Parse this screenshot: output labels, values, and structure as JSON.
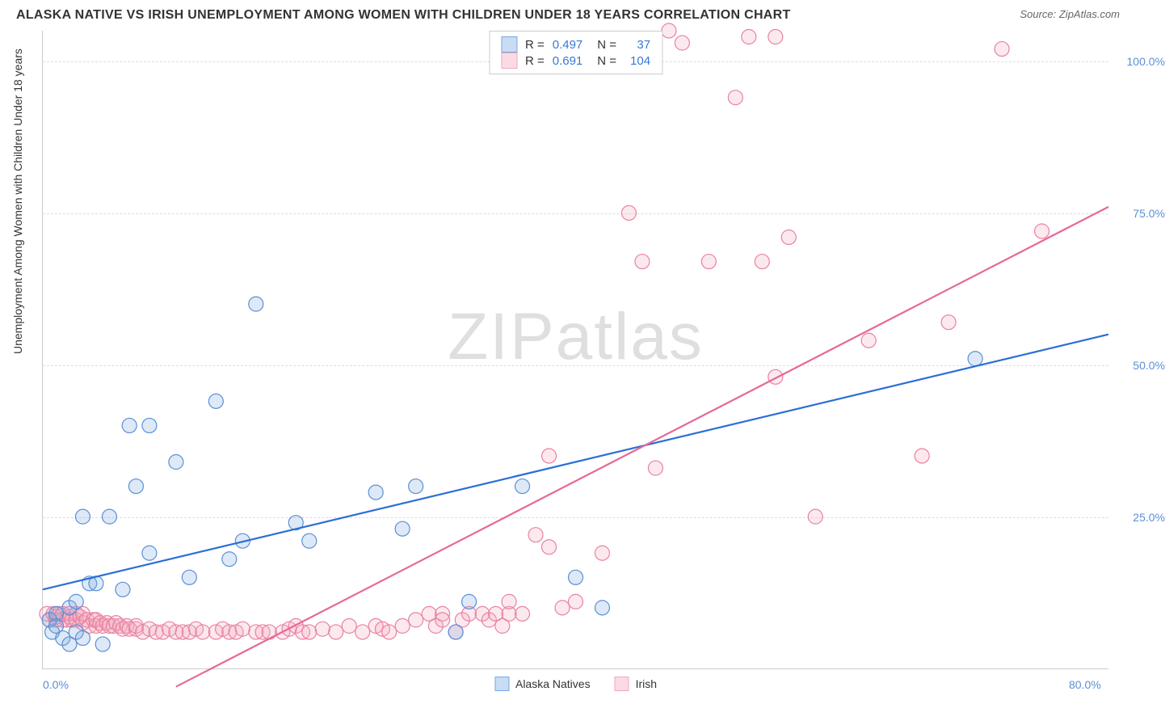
{
  "title": "ALASKA NATIVE VS IRISH UNEMPLOYMENT AMONG WOMEN WITH CHILDREN UNDER 18 YEARS CORRELATION CHART",
  "source": "Source: ZipAtlas.com",
  "y_axis_label": "Unemployment Among Women with Children Under 18 years",
  "watermark": "ZIPatlas",
  "chart": {
    "type": "scatter",
    "x_domain": [
      0,
      80
    ],
    "y_domain": [
      0,
      105
    ],
    "x_ticks": [
      {
        "v": 0,
        "label": "0.0%"
      },
      {
        "v": 80,
        "label": "80.0%"
      }
    ],
    "y_ticks": [
      {
        "v": 25,
        "label": "25.0%"
      },
      {
        "v": 50,
        "label": "50.0%"
      },
      {
        "v": 75,
        "label": "75.0%"
      },
      {
        "v": 100,
        "label": "100.0%"
      }
    ],
    "grid_color": "#dddddd",
    "background": "#ffffff",
    "marker_radius": 9,
    "marker_stroke_width": 1.2,
    "marker_fill_opacity": 0.25,
    "line_width": 2.2
  },
  "series": [
    {
      "name": "Alaska Natives",
      "color": "#7aa8e0",
      "stroke": "#5b8fd6",
      "line_color": "#2a6fd6",
      "stats": {
        "R": "0.497",
        "N": "37"
      },
      "trend": {
        "x1": 0,
        "y1": 13,
        "x2": 80,
        "y2": 55
      },
      "points": [
        [
          0.5,
          8
        ],
        [
          0.7,
          6
        ],
        [
          1,
          9
        ],
        [
          1,
          7
        ],
        [
          1.5,
          5
        ],
        [
          2,
          10
        ],
        [
          2,
          4
        ],
        [
          2.5,
          11
        ],
        [
          2.5,
          6
        ],
        [
          3,
          5
        ],
        [
          3,
          25
        ],
        [
          3.5,
          14
        ],
        [
          4,
          14
        ],
        [
          4.5,
          4
        ],
        [
          5,
          25
        ],
        [
          6,
          13
        ],
        [
          6.5,
          40
        ],
        [
          7,
          30
        ],
        [
          8,
          40
        ],
        [
          8,
          19
        ],
        [
          10,
          34
        ],
        [
          11,
          15
        ],
        [
          13,
          44
        ],
        [
          14,
          18
        ],
        [
          15,
          21
        ],
        [
          16,
          60
        ],
        [
          19,
          24
        ],
        [
          20,
          21
        ],
        [
          25,
          29
        ],
        [
          27,
          23
        ],
        [
          28,
          30
        ],
        [
          31,
          6
        ],
        [
          32,
          11
        ],
        [
          36,
          30
        ],
        [
          40,
          15
        ],
        [
          42,
          10
        ],
        [
          70,
          51
        ]
      ]
    },
    {
      "name": "Irish",
      "color": "#f2a8bd",
      "stroke": "#e882a3",
      "line_color": "#e6689a",
      "stats": {
        "R": "0.691",
        "N": "104"
      },
      "trend": {
        "x1": 10,
        "y1": -3,
        "x2": 80,
        "y2": 76
      },
      "points": [
        [
          0.3,
          9
        ],
        [
          0.5,
          8
        ],
        [
          0.8,
          9
        ],
        [
          1,
          8
        ],
        [
          1,
          8.5
        ],
        [
          1.2,
          9
        ],
        [
          1.5,
          8
        ],
        [
          1.5,
          9
        ],
        [
          1.8,
          8
        ],
        [
          2,
          8.5
        ],
        [
          2,
          9
        ],
        [
          2.2,
          8
        ],
        [
          2.5,
          9
        ],
        [
          2.5,
          8
        ],
        [
          2.8,
          8.5
        ],
        [
          3,
          7.5
        ],
        [
          3,
          9
        ],
        [
          3.3,
          8
        ],
        [
          3.5,
          7
        ],
        [
          3.8,
          8
        ],
        [
          4,
          7
        ],
        [
          4,
          8
        ],
        [
          4.3,
          7.5
        ],
        [
          4.5,
          7
        ],
        [
          4.8,
          7.5
        ],
        [
          5,
          7
        ],
        [
          5.3,
          7
        ],
        [
          5.5,
          7.5
        ],
        [
          5.8,
          7
        ],
        [
          6,
          6.5
        ],
        [
          6.3,
          7
        ],
        [
          6.5,
          6.5
        ],
        [
          7,
          6.5
        ],
        [
          7,
          7
        ],
        [
          7.5,
          6
        ],
        [
          8,
          6.5
        ],
        [
          8.5,
          6
        ],
        [
          9,
          6
        ],
        [
          9.5,
          6.5
        ],
        [
          10,
          6
        ],
        [
          10.5,
          6
        ],
        [
          11,
          6
        ],
        [
          11.5,
          6.5
        ],
        [
          12,
          6
        ],
        [
          13,
          6
        ],
        [
          13.5,
          6.5
        ],
        [
          14,
          6
        ],
        [
          14.5,
          6
        ],
        [
          15,
          6.5
        ],
        [
          16,
          6
        ],
        [
          16.5,
          6
        ],
        [
          17,
          6
        ],
        [
          18,
          6
        ],
        [
          18.5,
          6.5
        ],
        [
          19,
          7
        ],
        [
          19.5,
          6
        ],
        [
          20,
          6
        ],
        [
          21,
          6.5
        ],
        [
          22,
          6
        ],
        [
          23,
          7
        ],
        [
          24,
          6
        ],
        [
          25,
          7
        ],
        [
          25.5,
          6.5
        ],
        [
          26,
          6
        ],
        [
          27,
          7
        ],
        [
          28,
          8
        ],
        [
          29,
          9
        ],
        [
          29.5,
          7
        ],
        [
          30,
          9
        ],
        [
          30,
          8
        ],
        [
          31,
          6
        ],
        [
          31.5,
          8
        ],
        [
          32,
          9
        ],
        [
          33,
          9
        ],
        [
          33.5,
          8
        ],
        [
          34,
          9
        ],
        [
          34.5,
          7
        ],
        [
          35,
          9
        ],
        [
          35,
          11
        ],
        [
          36,
          9
        ],
        [
          37,
          22
        ],
        [
          38,
          20
        ],
        [
          38,
          35
        ],
        [
          39,
          10
        ],
        [
          40,
          11
        ],
        [
          42,
          19
        ],
        [
          44,
          75
        ],
        [
          45,
          67
        ],
        [
          46,
          33
        ],
        [
          47,
          105
        ],
        [
          48,
          103
        ],
        [
          50,
          67
        ],
        [
          52,
          94
        ],
        [
          53,
          104
        ],
        [
          54,
          67
        ],
        [
          55,
          48
        ],
        [
          55,
          104
        ],
        [
          56,
          71
        ],
        [
          58,
          25
        ],
        [
          62,
          54
        ],
        [
          66,
          35
        ],
        [
          68,
          57
        ],
        [
          72,
          102
        ],
        [
          75,
          72
        ]
      ]
    }
  ],
  "stats_labels": {
    "R": "R =",
    "N": "N ="
  },
  "legend_labels": {
    "alaska": "Alaska Natives",
    "irish": "Irish"
  }
}
